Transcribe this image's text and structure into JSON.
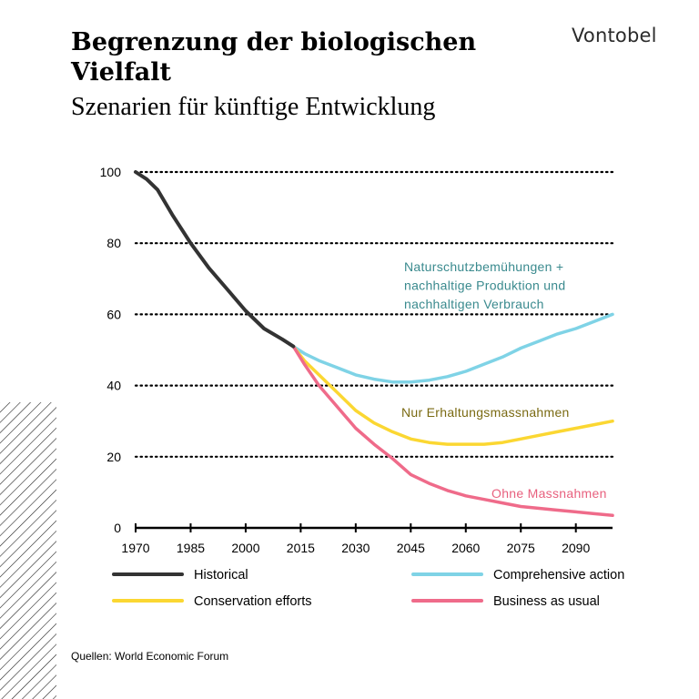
{
  "header": {
    "title": "Begrenzung der biologischen Vielfalt",
    "subtitle": "Szenarien für künftige Entwicklung",
    "brand": "Vontobel"
  },
  "footer": {
    "source": "Quellen: World Economic Forum"
  },
  "colors": {
    "historical": "#333333",
    "comprehensive": "#7fd3e6",
    "conservation": "#fbd732",
    "business": "#ef6b8a",
    "ann_comprehensive": "#3a8a8e",
    "ann_conservation": "#7a6a12",
    "ann_business": "#e8607e"
  },
  "chart_data": {
    "type": "line",
    "xlim": [
      1970,
      2100
    ],
    "ylim": [
      0,
      100
    ],
    "x_ticks": [
      "1970",
      "1985",
      "2000",
      "2015",
      "2030",
      "2045",
      "2060",
      "2075",
      "2090"
    ],
    "y_ticks": [
      "0",
      "20",
      "40",
      "60",
      "80",
      "100"
    ],
    "grid": "dotted horizontal",
    "series": [
      {
        "key": "historical",
        "name": "Historical",
        "x": [
          1970,
          1973,
          1976,
          1980,
          1985,
          1990,
          1995,
          2000,
          2005,
          2010,
          2013
        ],
        "y": [
          100,
          98,
          95,
          88,
          80,
          73,
          67,
          61,
          56,
          53,
          51
        ]
      },
      {
        "key": "comprehensive",
        "name": "Comprehensive action",
        "x": [
          2013,
          2016,
          2020,
          2025,
          2030,
          2035,
          2040,
          2045,
          2050,
          2055,
          2060,
          2065,
          2070,
          2075,
          2080,
          2085,
          2090,
          2095,
          2100
        ],
        "y": [
          51,
          49,
          47,
          45,
          43,
          41.8,
          41,
          41,
          41.5,
          42.5,
          44,
          46,
          48,
          50.5,
          52.5,
          54.5,
          56,
          58,
          60
        ]
      },
      {
        "key": "conservation",
        "name": "Conservation efforts",
        "x": [
          2013,
          2016,
          2020,
          2025,
          2030,
          2035,
          2040,
          2045,
          2050,
          2055,
          2060,
          2065,
          2070,
          2075,
          2080,
          2085,
          2090,
          2095,
          2100
        ],
        "y": [
          51,
          47,
          43,
          38,
          33,
          29.5,
          27,
          25,
          24,
          23.5,
          23.5,
          23.5,
          24,
          25,
          26,
          27,
          28,
          29,
          30
        ]
      },
      {
        "key": "business",
        "name": "Business as usual",
        "x": [
          2013,
          2016,
          2020,
          2025,
          2030,
          2035,
          2040,
          2045,
          2050,
          2055,
          2060,
          2065,
          2070,
          2075,
          2080,
          2085,
          2090,
          2095,
          2100
        ],
        "y": [
          51,
          46,
          40,
          34,
          28,
          23.5,
          19.5,
          15,
          12.5,
          10.5,
          9,
          8,
          7,
          6,
          5.5,
          5,
          4.5,
          4,
          3.5
        ]
      }
    ],
    "annotations": [
      {
        "key": "comprehensive",
        "lines": [
          "Naturschutzbemühungen  +",
          "nachhaltige  Produktion  und",
          "nachhaltigen  Verbrauch"
        ]
      },
      {
        "key": "conservation",
        "lines": [
          "Nur  Erhaltungsmassnahmen"
        ]
      },
      {
        "key": "business",
        "lines": [
          "Ohne  Massnahmen"
        ]
      }
    ],
    "legend": [
      {
        "key": "historical",
        "label": "Historical"
      },
      {
        "key": "comprehensive",
        "label": "Comprehensive action"
      },
      {
        "key": "conservation",
        "label": "Conservation efforts"
      },
      {
        "key": "business",
        "label": "Business as usual"
      }
    ]
  }
}
